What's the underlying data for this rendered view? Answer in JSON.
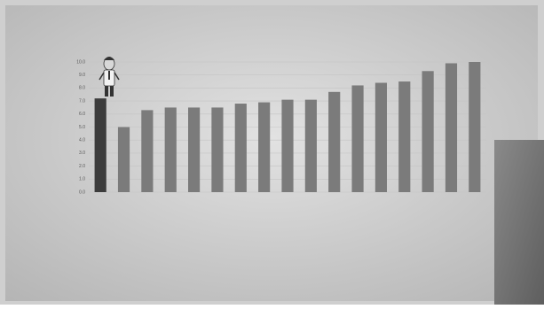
{
  "chart_data": {
    "type": "bar",
    "categories": [
      null,
      null,
      null,
      null,
      null,
      null,
      null,
      null,
      null,
      null,
      null,
      null,
      null,
      null,
      null,
      null,
      null
    ],
    "values": [
      7.2,
      5.0,
      6.3,
      6.5,
      6.5,
      6.5,
      6.8,
      6.9,
      7.1,
      7.1,
      7.7,
      8.2,
      8.4,
      8.5,
      9.3,
      9.9,
      10.0
    ],
    "colors": [
      "#3c3c3c",
      "#7b7b7b",
      "#7b7b7b",
      "#7b7b7b",
      "#7b7b7b",
      "#7b7b7b",
      "#7b7b7b",
      "#7b7b7b",
      "#7b7b7b",
      "#7b7b7b",
      "#7b7b7b",
      "#7b7b7b",
      "#7b7b7b",
      "#7b7b7b",
      "#7b7b7b",
      "#7b7b7b",
      "#7b7b7b"
    ],
    "ylim": [
      0,
      10
    ],
    "yticks": [
      {
        "value": 0,
        "label": "0.0"
      },
      {
        "value": 1,
        "label": "1.0"
      },
      {
        "value": 2,
        "label": "2.0"
      },
      {
        "value": 3,
        "label": "3.0"
      },
      {
        "value": 4,
        "label": "4.0"
      },
      {
        "value": 5,
        "label": "5.0"
      },
      {
        "value": 6,
        "label": "6.0"
      },
      {
        "value": 7,
        "label": "7.0"
      },
      {
        "value": 8,
        "label": "8.0"
      },
      {
        "value": 9,
        "label": "9.0"
      },
      {
        "value": 10,
        "label": "10.0"
      }
    ],
    "grid": true
  }
}
